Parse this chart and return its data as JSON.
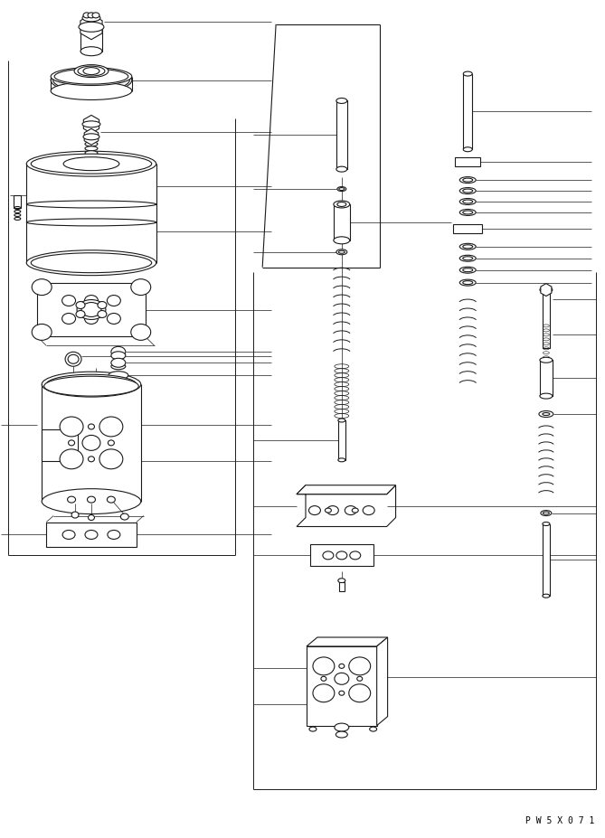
{
  "bg_color": "#ffffff",
  "line_color": "#1a1a1a",
  "line_width": 0.8,
  "fig_width": 6.69,
  "fig_height": 9.27,
  "dpi": 100,
  "watermark": "P W 5 X 0 7 1"
}
